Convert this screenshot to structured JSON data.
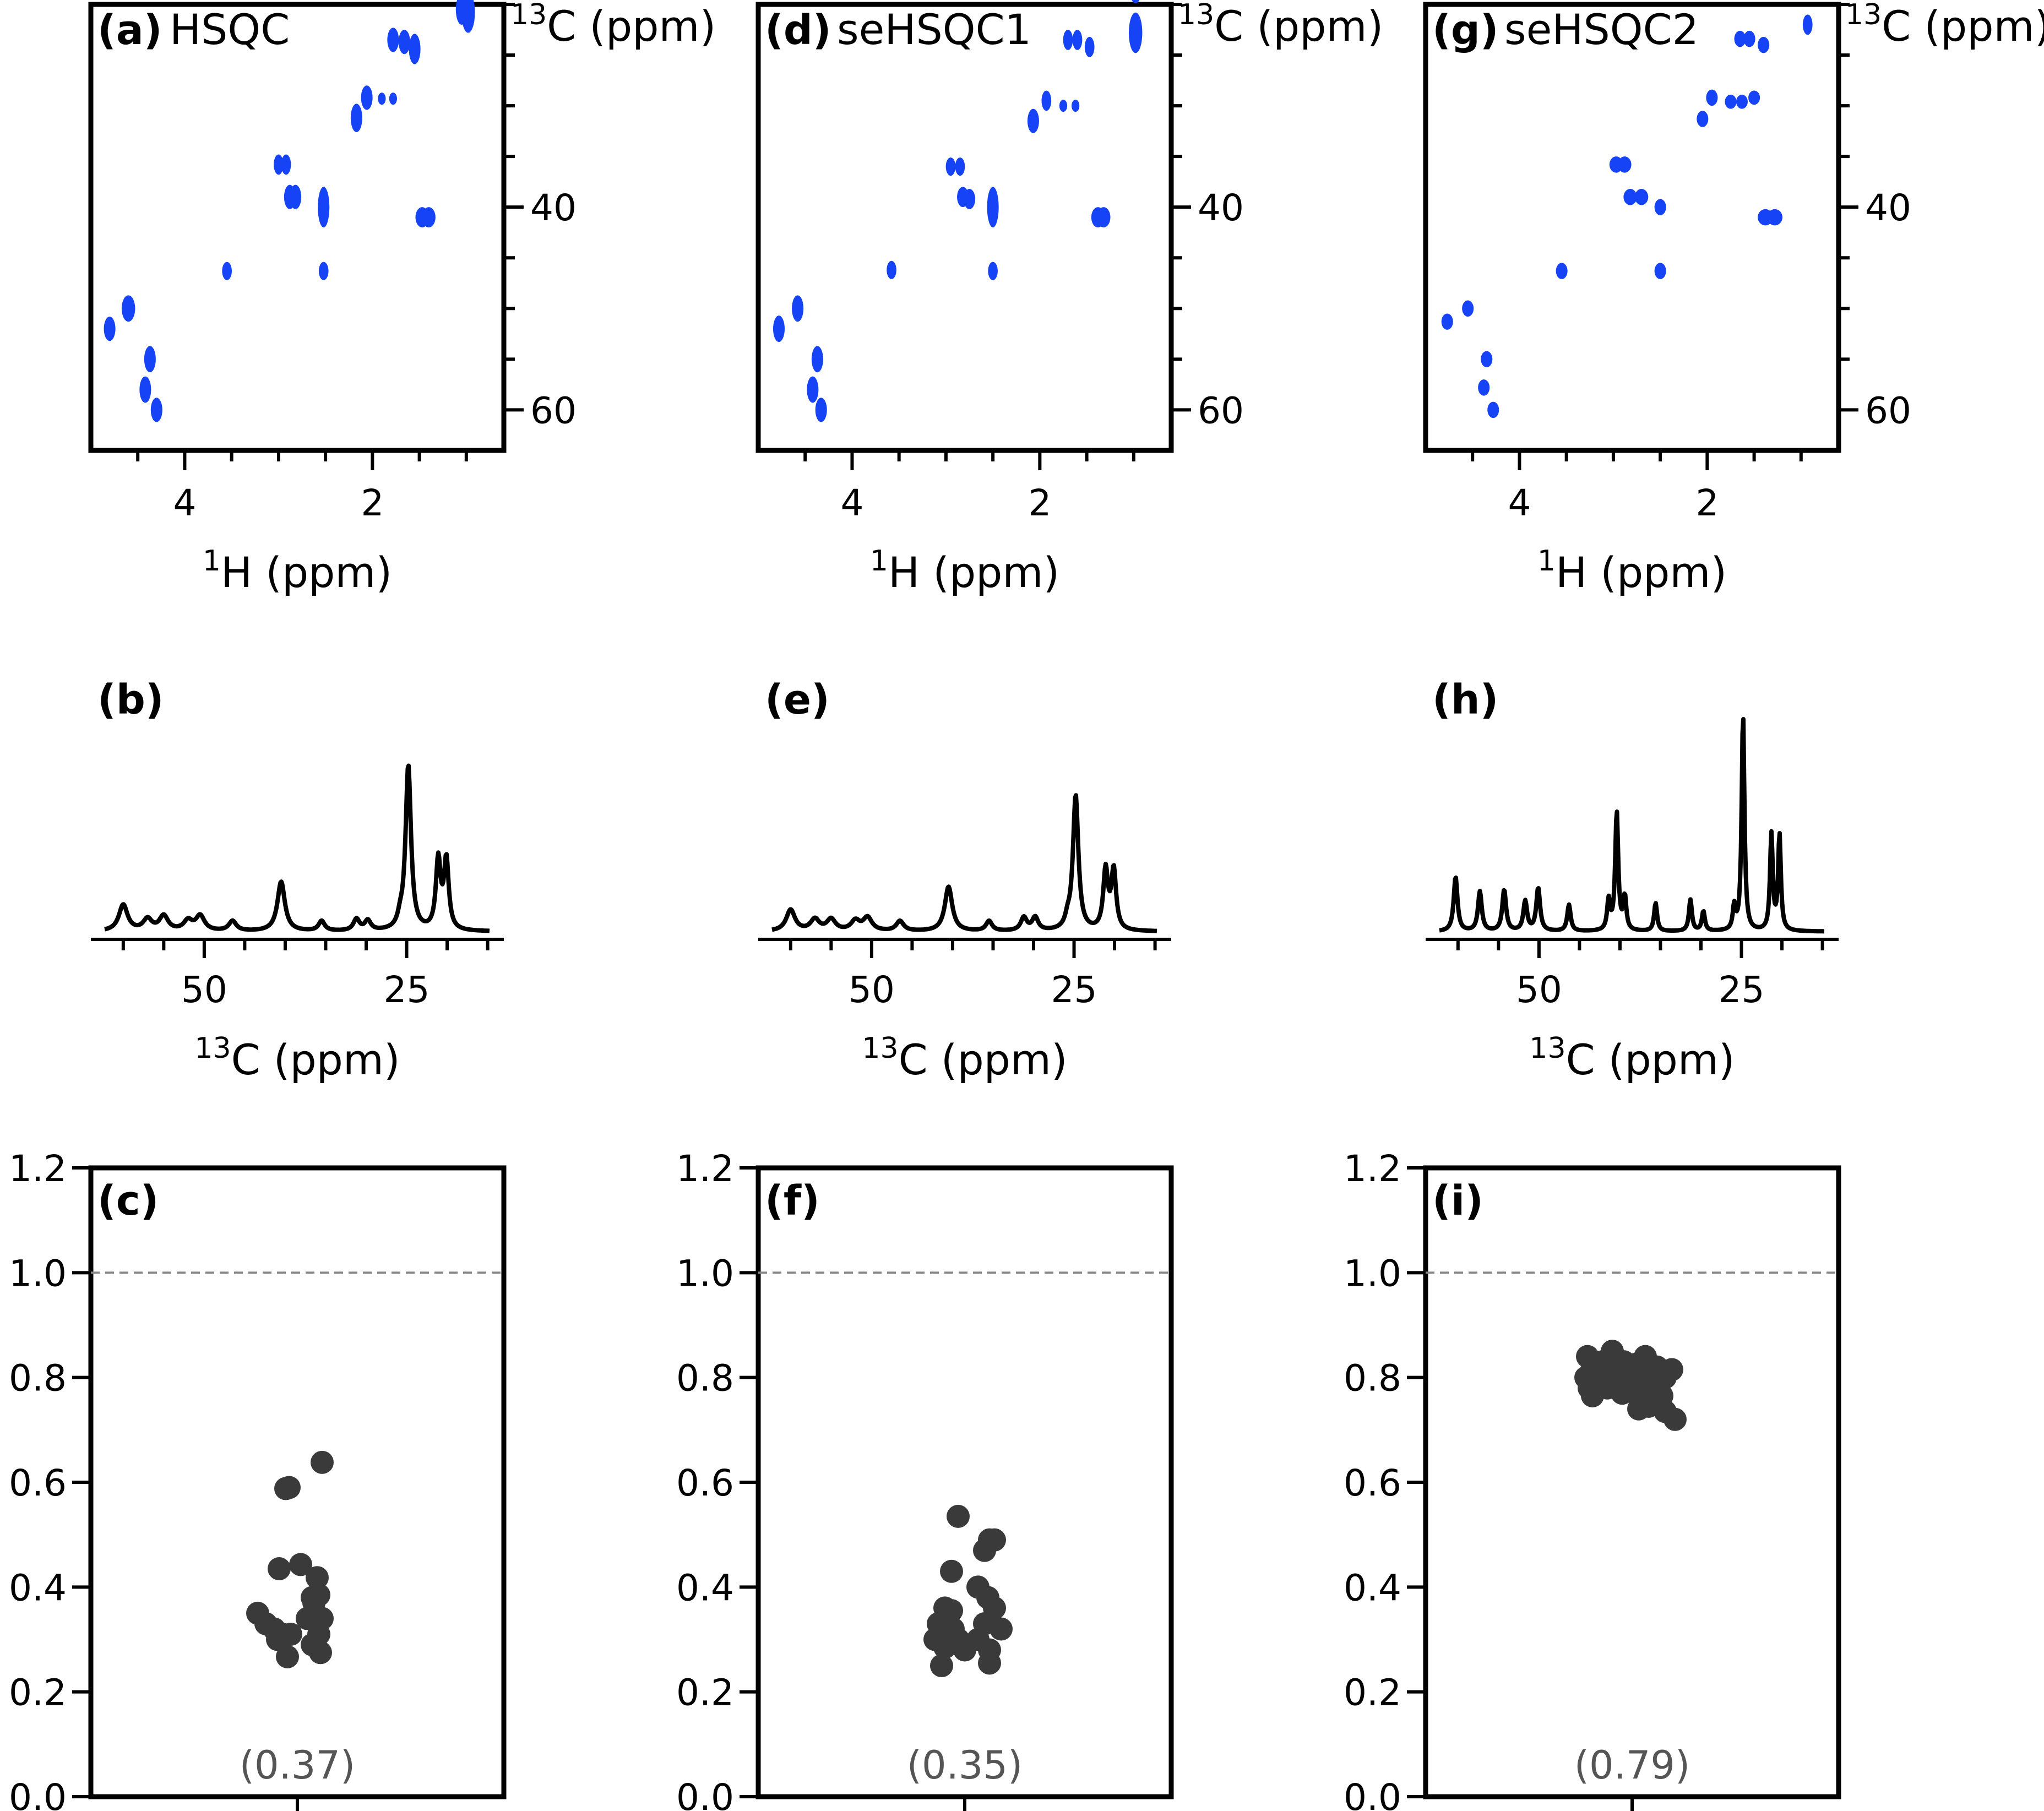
{
  "chart_data": [
    {
      "id": "a",
      "type": "scatter",
      "panel_label": "(a)",
      "title": "HSQC",
      "xlabel": "1H (ppm)",
      "ylabel": "13C (ppm)",
      "xlim": [
        5.0,
        0.6
      ],
      "ylim": [
        64,
        20
      ],
      "xticks_major": [
        4,
        2
      ],
      "xticks_minor": [
        4.5,
        3.5,
        3,
        2.5,
        1.5,
        1
      ],
      "yticks_major": [
        40,
        60
      ],
      "yticks_minor": [
        20,
        25,
        30,
        35,
        45,
        50,
        55
      ],
      "peaks": [
        {
          "x": 0.98,
          "y": 17.8,
          "w": 0.06,
          "h": 2.0
        },
        {
          "x": 0.98,
          "y": 20.8,
          "w": 0.06,
          "h": 2.0
        },
        {
          "x": 1.05,
          "y": 20.5,
          "w": 0.05,
          "h": 1.5
        },
        {
          "x": 1.78,
          "y": 23.5,
          "w": 0.05,
          "h": 1.2
        },
        {
          "x": 1.66,
          "y": 23.7,
          "w": 0.05,
          "h": 1.2
        },
        {
          "x": 1.55,
          "y": 24.4,
          "w": 0.05,
          "h": 1.5
        },
        {
          "x": 2.06,
          "y": 29.2,
          "w": 0.05,
          "h": 1.2
        },
        {
          "x": 2.17,
          "y": 31.2,
          "w": 0.05,
          "h": 1.4
        },
        {
          "x": 1.9,
          "y": 29.3,
          "w": 0.03,
          "h": 0.6
        },
        {
          "x": 1.78,
          "y": 29.3,
          "w": 0.03,
          "h": 0.6
        },
        {
          "x": 3.0,
          "y": 35.8,
          "w": 0.04,
          "h": 1.0
        },
        {
          "x": 2.92,
          "y": 35.8,
          "w": 0.04,
          "h": 1.0
        },
        {
          "x": 2.88,
          "y": 39.0,
          "w": 0.05,
          "h": 1.2
        },
        {
          "x": 2.82,
          "y": 39.0,
          "w": 0.05,
          "h": 1.2
        },
        {
          "x": 2.52,
          "y": 40.0,
          "w": 0.05,
          "h": 2.0
        },
        {
          "x": 1.47,
          "y": 41.0,
          "w": 0.06,
          "h": 1.0
        },
        {
          "x": 1.4,
          "y": 41.0,
          "w": 0.06,
          "h": 1.0
        },
        {
          "x": 3.55,
          "y": 46.3,
          "w": 0.04,
          "h": 0.9
        },
        {
          "x": 2.52,
          "y": 46.3,
          "w": 0.04,
          "h": 0.9
        },
        {
          "x": 4.6,
          "y": 50.0,
          "w": 0.06,
          "h": 1.3
        },
        {
          "x": 4.8,
          "y": 52.0,
          "w": 0.05,
          "h": 1.2
        },
        {
          "x": 4.37,
          "y": 55.0,
          "w": 0.05,
          "h": 1.3
        },
        {
          "x": 4.42,
          "y": 58.0,
          "w": 0.05,
          "h": 1.3
        },
        {
          "x": 4.3,
          "y": 60.0,
          "w": 0.05,
          "h": 1.2
        }
      ]
    },
    {
      "id": "d",
      "type": "scatter",
      "panel_label": "(d)",
      "title": "seHSQC1",
      "xlabel": "1H (ppm)",
      "ylabel": "13C (ppm)",
      "xlim": [
        5.0,
        0.6
      ],
      "ylim": [
        64,
        20
      ],
      "xticks_major": [
        4,
        2
      ],
      "xticks_minor": [
        4.5,
        3.5,
        3,
        2.5,
        1.5,
        1
      ],
      "yticks_major": [
        40,
        60
      ],
      "yticks_minor": [
        20,
        25,
        30,
        35,
        45,
        50,
        55
      ],
      "peaks": [
        {
          "x": 0.98,
          "y": 18.0,
          "w": 0.06,
          "h": 1.9
        },
        {
          "x": 0.98,
          "y": 22.8,
          "w": 0.06,
          "h": 2.0
        },
        {
          "x": 1.7,
          "y": 23.5,
          "w": 0.04,
          "h": 1.0
        },
        {
          "x": 1.6,
          "y": 23.5,
          "w": 0.04,
          "h": 1.0
        },
        {
          "x": 1.47,
          "y": 24.2,
          "w": 0.04,
          "h": 1.0
        },
        {
          "x": 1.93,
          "y": 29.5,
          "w": 0.04,
          "h": 1.0
        },
        {
          "x": 1.75,
          "y": 30.0,
          "w": 0.03,
          "h": 0.6
        },
        {
          "x": 1.62,
          "y": 30.0,
          "w": 0.03,
          "h": 0.6
        },
        {
          "x": 2.07,
          "y": 31.5,
          "w": 0.05,
          "h": 1.2
        },
        {
          "x": 2.95,
          "y": 36.0,
          "w": 0.04,
          "h": 0.9
        },
        {
          "x": 2.85,
          "y": 36.0,
          "w": 0.04,
          "h": 0.9
        },
        {
          "x": 2.82,
          "y": 39.0,
          "w": 0.05,
          "h": 1.0
        },
        {
          "x": 2.75,
          "y": 39.2,
          "w": 0.05,
          "h": 1.0
        },
        {
          "x": 2.5,
          "y": 40.0,
          "w": 0.05,
          "h": 2.0
        },
        {
          "x": 1.38,
          "y": 41.0,
          "w": 0.06,
          "h": 1.0
        },
        {
          "x": 1.32,
          "y": 41.0,
          "w": 0.06,
          "h": 1.0
        },
        {
          "x": 3.58,
          "y": 46.2,
          "w": 0.04,
          "h": 0.9
        },
        {
          "x": 2.5,
          "y": 46.3,
          "w": 0.04,
          "h": 0.9
        },
        {
          "x": 4.58,
          "y": 50.0,
          "w": 0.05,
          "h": 1.3
        },
        {
          "x": 4.78,
          "y": 52.0,
          "w": 0.05,
          "h": 1.3
        },
        {
          "x": 4.37,
          "y": 55.0,
          "w": 0.05,
          "h": 1.3
        },
        {
          "x": 4.42,
          "y": 58.0,
          "w": 0.05,
          "h": 1.3
        },
        {
          "x": 4.33,
          "y": 60.0,
          "w": 0.05,
          "h": 1.2
        }
      ]
    },
    {
      "id": "g",
      "type": "scatter",
      "panel_label": "(g)",
      "title": "seHSQC2",
      "xlabel": "1H (ppm)",
      "ylabel": "13C (ppm)",
      "xlim": [
        5.0,
        0.6
      ],
      "ylim": [
        64,
        20
      ],
      "xticks_major": [
        4,
        2
      ],
      "xticks_minor": [
        4.5,
        3.5,
        3,
        2.5,
        1.5,
        1
      ],
      "yticks_major": [
        40,
        60
      ],
      "yticks_minor": [
        20,
        25,
        30,
        35,
        45,
        50,
        55
      ],
      "peaks": [
        {
          "x": 0.93,
          "y": 17.8,
          "w": 0.04,
          "h": 1.0
        },
        {
          "x": 0.93,
          "y": 22.0,
          "w": 0.04,
          "h": 1.0
        },
        {
          "x": 1.65,
          "y": 23.4,
          "w": 0.05,
          "h": 0.8
        },
        {
          "x": 1.55,
          "y": 23.4,
          "w": 0.05,
          "h": 0.8
        },
        {
          "x": 1.4,
          "y": 24.0,
          "w": 0.05,
          "h": 0.8
        },
        {
          "x": 1.95,
          "y": 29.2,
          "w": 0.05,
          "h": 0.8
        },
        {
          "x": 1.75,
          "y": 29.6,
          "w": 0.05,
          "h": 0.7
        },
        {
          "x": 1.63,
          "y": 29.6,
          "w": 0.05,
          "h": 0.7
        },
        {
          "x": 1.5,
          "y": 29.2,
          "w": 0.05,
          "h": 0.7
        },
        {
          "x": 2.05,
          "y": 31.3,
          "w": 0.05,
          "h": 0.8
        },
        {
          "x": 2.97,
          "y": 35.8,
          "w": 0.06,
          "h": 0.8
        },
        {
          "x": 2.88,
          "y": 35.8,
          "w": 0.06,
          "h": 0.8
        },
        {
          "x": 2.82,
          "y": 39.0,
          "w": 0.06,
          "h": 0.8
        },
        {
          "x": 2.7,
          "y": 39.0,
          "w": 0.06,
          "h": 0.8
        },
        {
          "x": 2.5,
          "y": 40.0,
          "w": 0.05,
          "h": 0.8
        },
        {
          "x": 1.38,
          "y": 41.0,
          "w": 0.07,
          "h": 0.8
        },
        {
          "x": 1.28,
          "y": 41.0,
          "w": 0.07,
          "h": 0.8
        },
        {
          "x": 3.55,
          "y": 46.3,
          "w": 0.05,
          "h": 0.8
        },
        {
          "x": 2.5,
          "y": 46.3,
          "w": 0.05,
          "h": 0.8
        },
        {
          "x": 4.55,
          "y": 50.0,
          "w": 0.05,
          "h": 0.8
        },
        {
          "x": 4.77,
          "y": 51.3,
          "w": 0.05,
          "h": 0.8
        },
        {
          "x": 4.35,
          "y": 55.0,
          "w": 0.05,
          "h": 0.8
        },
        {
          "x": 4.38,
          "y": 57.8,
          "w": 0.05,
          "h": 0.8
        },
        {
          "x": 4.28,
          "y": 60.0,
          "w": 0.05,
          "h": 0.8
        }
      ]
    },
    {
      "id": "b",
      "type": "line",
      "panel_label": "(b)",
      "xlabel": "13C (ppm)",
      "xlim": [
        64,
        13
      ],
      "xticks_major": [
        50,
        25
      ],
      "xticks_minor": [
        60,
        55,
        45,
        40,
        35,
        30,
        20,
        15
      ],
      "peaks": [
        {
          "c": 60.0,
          "a": 0.16,
          "w": 0.65
        },
        {
          "c": 57.0,
          "a": 0.07,
          "w": 0.65
        },
        {
          "c": 55.0,
          "a": 0.09,
          "w": 0.65
        },
        {
          "c": 52.0,
          "a": 0.06,
          "w": 0.65
        },
        {
          "c": 50.5,
          "a": 0.09,
          "w": 0.65
        },
        {
          "c": 46.5,
          "a": 0.06,
          "w": 0.55
        },
        {
          "c": 40.5,
          "a": 0.3,
          "w": 0.55
        },
        {
          "c": 35.5,
          "a": 0.06,
          "w": 0.45
        },
        {
          "c": 31.2,
          "a": 0.07,
          "w": 0.45
        },
        {
          "c": 29.8,
          "a": 0.06,
          "w": 0.45
        },
        {
          "c": 25.8,
          "a": 0.05,
          "w": 0.35
        },
        {
          "c": 24.8,
          "a": 1.0,
          "w": 0.4
        },
        {
          "c": 21.1,
          "a": 0.42,
          "w": 0.35
        },
        {
          "c": 20.1,
          "a": 0.42,
          "w": 0.35
        }
      ]
    },
    {
      "id": "e",
      "type": "line",
      "panel_label": "(e)",
      "xlabel": "13C (ppm)",
      "xlim": [
        64,
        13
      ],
      "xticks_major": [
        50,
        25
      ],
      "xticks_minor": [
        60,
        55,
        45,
        40,
        35,
        30,
        20,
        15
      ],
      "peaks": [
        {
          "c": 60.0,
          "a": 0.13,
          "w": 0.65
        },
        {
          "c": 57.0,
          "a": 0.07,
          "w": 0.65
        },
        {
          "c": 55.0,
          "a": 0.07,
          "w": 0.65
        },
        {
          "c": 52.0,
          "a": 0.06,
          "w": 0.65
        },
        {
          "c": 50.5,
          "a": 0.08,
          "w": 0.65
        },
        {
          "c": 46.5,
          "a": 0.06,
          "w": 0.55
        },
        {
          "c": 40.5,
          "a": 0.27,
          "w": 0.55
        },
        {
          "c": 35.5,
          "a": 0.06,
          "w": 0.45
        },
        {
          "c": 31.2,
          "a": 0.08,
          "w": 0.45
        },
        {
          "c": 29.8,
          "a": 0.08,
          "w": 0.45
        },
        {
          "c": 25.8,
          "a": 0.05,
          "w": 0.35
        },
        {
          "c": 24.8,
          "a": 0.82,
          "w": 0.4
        },
        {
          "c": 21.1,
          "a": 0.36,
          "w": 0.35
        },
        {
          "c": 20.1,
          "a": 0.36,
          "w": 0.35
        }
      ]
    },
    {
      "id": "h",
      "type": "line",
      "panel_label": "(h)",
      "xlabel": "13C (ppm)",
      "xlim": [
        64,
        13
      ],
      "xticks_major": [
        50,
        25
      ],
      "xticks_minor": [
        60,
        55,
        45,
        40,
        35,
        30,
        20,
        15
      ],
      "peaks": [
        {
          "c": 60.3,
          "a": 0.33,
          "w": 0.28
        },
        {
          "c": 57.3,
          "a": 0.24,
          "w": 0.28
        },
        {
          "c": 54.3,
          "a": 0.25,
          "w": 0.28
        },
        {
          "c": 51.7,
          "a": 0.18,
          "w": 0.28
        },
        {
          "c": 50.1,
          "a": 0.26,
          "w": 0.28
        },
        {
          "c": 46.3,
          "a": 0.16,
          "w": 0.25
        },
        {
          "c": 41.4,
          "a": 0.18,
          "w": 0.22
        },
        {
          "c": 40.4,
          "a": 0.72,
          "w": 0.22
        },
        {
          "c": 39.4,
          "a": 0.2,
          "w": 0.22
        },
        {
          "c": 35.6,
          "a": 0.17,
          "w": 0.22
        },
        {
          "c": 31.3,
          "a": 0.19,
          "w": 0.22
        },
        {
          "c": 29.7,
          "a": 0.12,
          "w": 0.22
        },
        {
          "c": 25.9,
          "a": 0.14,
          "w": 0.2
        },
        {
          "c": 24.8,
          "a": 1.32,
          "w": 0.2
        },
        {
          "c": 21.3,
          "a": 0.58,
          "w": 0.2
        },
        {
          "c": 20.3,
          "a": 0.58,
          "w": 0.2
        }
      ]
    },
    {
      "id": "c",
      "type": "scatter",
      "panel_label": "(c)",
      "mean_label": "(0.37)",
      "mean": 0.37,
      "ylim": [
        0.0,
        1.2
      ],
      "yticks": [
        "0.0",
        "0.2",
        "0.4",
        "0.6",
        "0.8",
        "1.0",
        "1.2"
      ],
      "reference_line": 1.0,
      "points": [
        {
          "x": -0.07,
          "y": 0.588
        },
        {
          "x": -0.05,
          "y": 0.59
        },
        {
          "x": 0.15,
          "y": 0.638
        },
        {
          "x": -0.11,
          "y": 0.435
        },
        {
          "x": 0.02,
          "y": 0.443
        },
        {
          "x": 0.12,
          "y": 0.418
        },
        {
          "x": 0.09,
          "y": 0.38
        },
        {
          "x": 0.13,
          "y": 0.385
        },
        {
          "x": -0.24,
          "y": 0.35
        },
        {
          "x": -0.19,
          "y": 0.33
        },
        {
          "x": -0.14,
          "y": 0.32
        },
        {
          "x": -0.09,
          "y": 0.31
        },
        {
          "x": -0.12,
          "y": 0.3
        },
        {
          "x": -0.04,
          "y": 0.31
        },
        {
          "x": 0.06,
          "y": 0.34
        },
        {
          "x": 0.15,
          "y": 0.34
        },
        {
          "x": 0.13,
          "y": 0.31
        },
        {
          "x": 0.09,
          "y": 0.29
        },
        {
          "x": -0.06,
          "y": 0.267
        },
        {
          "x": 0.14,
          "y": 0.275
        },
        {
          "x": 0.1,
          "y": 0.37
        }
      ]
    },
    {
      "id": "f",
      "type": "scatter",
      "panel_label": "(f)",
      "mean_label": "(0.35)",
      "mean": 0.35,
      "ylim": [
        0.0,
        1.2
      ],
      "yticks": [
        "0.0",
        "0.2",
        "0.4",
        "0.6",
        "0.8",
        "1.0",
        "1.2"
      ],
      "reference_line": 1.0,
      "points": [
        {
          "x": -0.04,
          "y": 0.535
        },
        {
          "x": 0.15,
          "y": 0.49
        },
        {
          "x": 0.18,
          "y": 0.49
        },
        {
          "x": 0.12,
          "y": 0.47
        },
        {
          "x": -0.08,
          "y": 0.43
        },
        {
          "x": 0.08,
          "y": 0.4
        },
        {
          "x": 0.14,
          "y": 0.38
        },
        {
          "x": -0.12,
          "y": 0.36
        },
        {
          "x": -0.08,
          "y": 0.355
        },
        {
          "x": 0.18,
          "y": 0.36
        },
        {
          "x": -0.16,
          "y": 0.33
        },
        {
          "x": -0.07,
          "y": 0.32
        },
        {
          "x": 0.12,
          "y": 0.33
        },
        {
          "x": 0.22,
          "y": 0.32
        },
        {
          "x": -0.18,
          "y": 0.3
        },
        {
          "x": -0.04,
          "y": 0.3
        },
        {
          "x": 0.08,
          "y": 0.3
        },
        {
          "x": 0.15,
          "y": 0.28
        },
        {
          "x": -0.12,
          "y": 0.285
        },
        {
          "x": 0.0,
          "y": 0.28
        },
        {
          "x": -0.14,
          "y": 0.25
        },
        {
          "x": 0.15,
          "y": 0.255
        }
      ]
    },
    {
      "id": "i",
      "type": "scatter",
      "panel_label": "(i)",
      "mean_label": "(0.79)",
      "mean": 0.79,
      "ylim": [
        0.0,
        1.2
      ],
      "yticks": [
        "0.0",
        "0.2",
        "0.4",
        "0.6",
        "0.8",
        "1.0",
        "1.2"
      ],
      "reference_line": 1.0,
      "points": [
        {
          "x": -0.27,
          "y": 0.84
        },
        {
          "x": -0.12,
          "y": 0.85
        },
        {
          "x": 0.08,
          "y": 0.84
        },
        {
          "x": -0.24,
          "y": 0.82
        },
        {
          "x": -0.18,
          "y": 0.83
        },
        {
          "x": -0.05,
          "y": 0.83
        },
        {
          "x": 0.02,
          "y": 0.825
        },
        {
          "x": 0.15,
          "y": 0.82
        },
        {
          "x": 0.24,
          "y": 0.815
        },
        {
          "x": -0.28,
          "y": 0.8
        },
        {
          "x": -0.2,
          "y": 0.8
        },
        {
          "x": -0.12,
          "y": 0.8
        },
        {
          "x": -0.02,
          "y": 0.805
        },
        {
          "x": 0.1,
          "y": 0.8
        },
        {
          "x": 0.2,
          "y": 0.8
        },
        {
          "x": -0.26,
          "y": 0.78
        },
        {
          "x": -0.15,
          "y": 0.78
        },
        {
          "x": 0.0,
          "y": 0.78
        },
        {
          "x": 0.12,
          "y": 0.785
        },
        {
          "x": -0.24,
          "y": 0.765
        },
        {
          "x": -0.06,
          "y": 0.77
        },
        {
          "x": 0.05,
          "y": 0.76
        },
        {
          "x": 0.18,
          "y": 0.765
        },
        {
          "x": 0.04,
          "y": 0.74
        },
        {
          "x": 0.1,
          "y": 0.745
        },
        {
          "x": 0.2,
          "y": 0.735
        },
        {
          "x": 0.26,
          "y": 0.72
        }
      ]
    }
  ]
}
